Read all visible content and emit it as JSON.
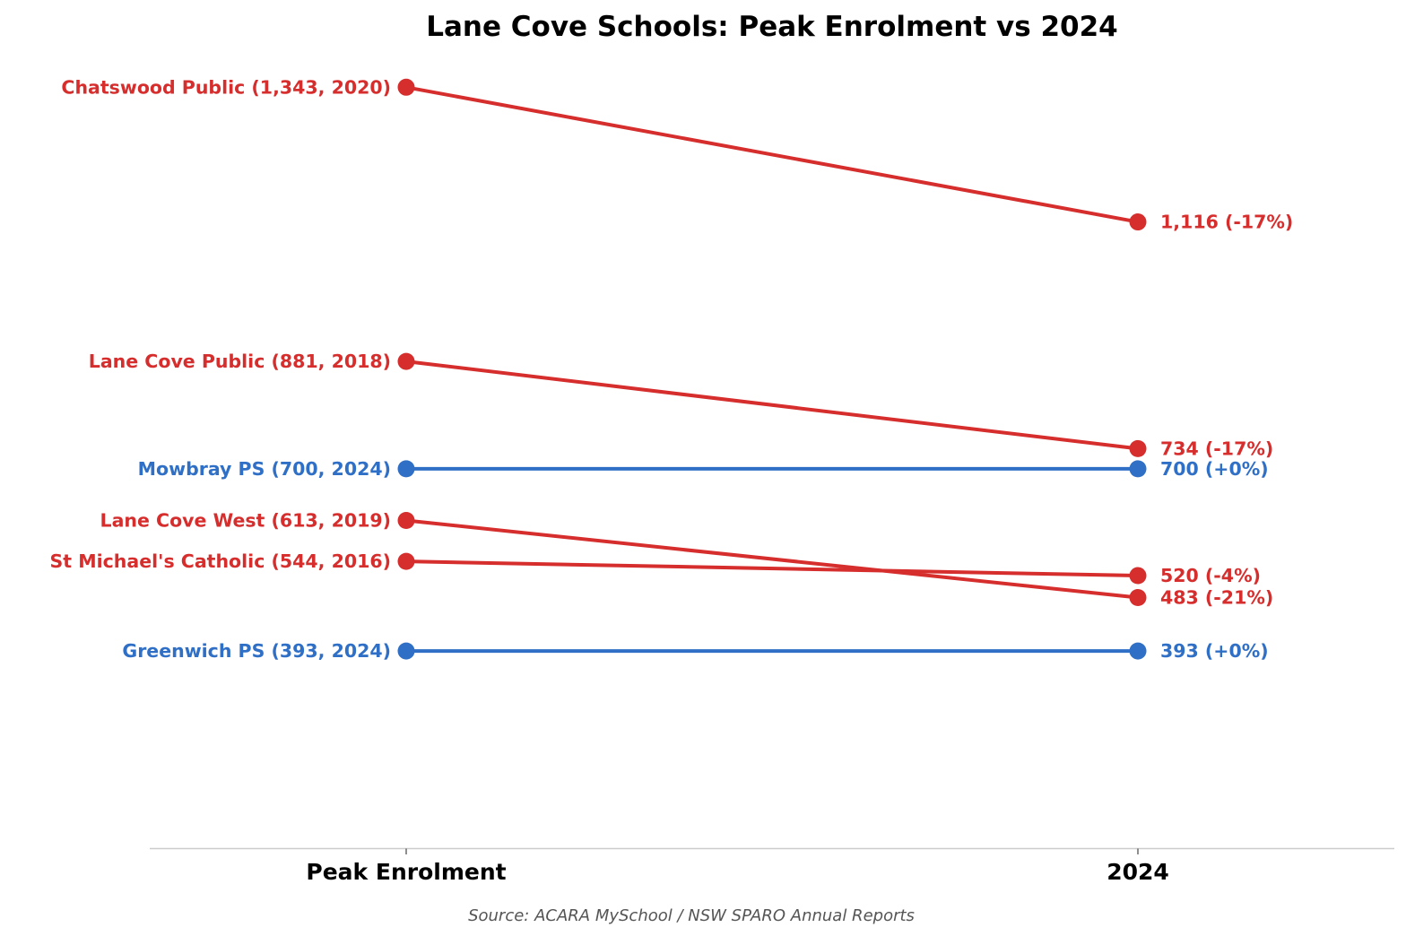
{
  "chart_data": {
    "type": "slope",
    "title": "Lane Cove Schools: Peak Enrolment vs 2024",
    "categories": [
      "Peak Enrolment",
      "2024"
    ],
    "source": "Source: ACARA MySchool / NSW SPARO Annual Reports",
    "ylim": [
      60,
      1490
    ],
    "colors": {
      "decline": "#d62d2d",
      "stable": "#2f6fc6"
    },
    "series": [
      {
        "name": "Chatswood Public",
        "peak": 1343,
        "peak_year": 2020,
        "value_2024": 1116,
        "status": "decline",
        "left_label": "Chatswood Public  (1,343, 2020)",
        "right_label": "1,116  (-17%)"
      },
      {
        "name": "Lane Cove Public",
        "peak": 881,
        "peak_year": 2018,
        "value_2024": 734,
        "status": "decline",
        "left_label": "Lane Cove Public  (881, 2018)",
        "right_label": "734  (-17%)"
      },
      {
        "name": "Mowbray PS",
        "peak": 700,
        "peak_year": 2024,
        "value_2024": 700,
        "status": "stable",
        "left_label": "Mowbray PS  (700, 2024)",
        "right_label": "700  (+0%)"
      },
      {
        "name": "Lane Cove West",
        "peak": 613,
        "peak_year": 2019,
        "value_2024": 483,
        "status": "decline",
        "left_label": "Lane Cove West  (613, 2019)",
        "right_label": "483  (-21%)"
      },
      {
        "name": "St Michael's Catholic",
        "peak": 544,
        "peak_year": 2016,
        "value_2024": 520,
        "status": "decline",
        "left_label": "St Michael's Catholic  (544, 2016)",
        "right_label": "520  (-4%)"
      },
      {
        "name": "Greenwich PS",
        "peak": 393,
        "peak_year": 2024,
        "value_2024": 393,
        "status": "stable",
        "left_label": "Greenwich PS  (393, 2024)",
        "right_label": "393  (+0%)"
      }
    ]
  }
}
